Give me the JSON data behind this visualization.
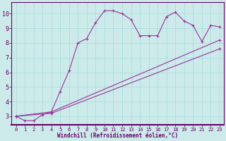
{
  "xlabel": "Windchill (Refroidissement éolien,°C)",
  "bg_color": "#cceaea",
  "line_color": "#993399",
  "grid_color": "#aadddd",
  "spine_color": "#660066",
  "text_color": "#660066",
  "xlim": [
    -0.5,
    23.5
  ],
  "ylim": [
    2.4,
    10.8
  ],
  "xticks": [
    0,
    1,
    2,
    3,
    4,
    5,
    6,
    7,
    8,
    9,
    10,
    11,
    12,
    13,
    14,
    15,
    16,
    17,
    18,
    19,
    20,
    21,
    22,
    23
  ],
  "yticks": [
    3,
    4,
    5,
    6,
    7,
    8,
    9,
    10
  ],
  "series": [
    {
      "x": [
        0,
        1,
        2,
        3,
        4,
        5,
        6,
        7,
        8,
        9,
        10,
        11,
        12,
        13,
        14,
        15,
        16,
        17,
        18,
        19,
        20,
        21,
        22,
        23
      ],
      "y": [
        3.0,
        2.7,
        2.7,
        3.1,
        3.3,
        4.7,
        6.1,
        8.0,
        8.3,
        9.4,
        10.2,
        10.2,
        10.0,
        9.6,
        8.5,
        8.5,
        8.5,
        9.8,
        10.1,
        9.5,
        9.2,
        8.1,
        9.2,
        9.1
      ]
    },
    {
      "x": [
        0,
        4,
        23
      ],
      "y": [
        3.0,
        3.3,
        8.2
      ]
    },
    {
      "x": [
        0,
        4,
        23
      ],
      "y": [
        3.0,
        3.2,
        7.6
      ]
    }
  ]
}
